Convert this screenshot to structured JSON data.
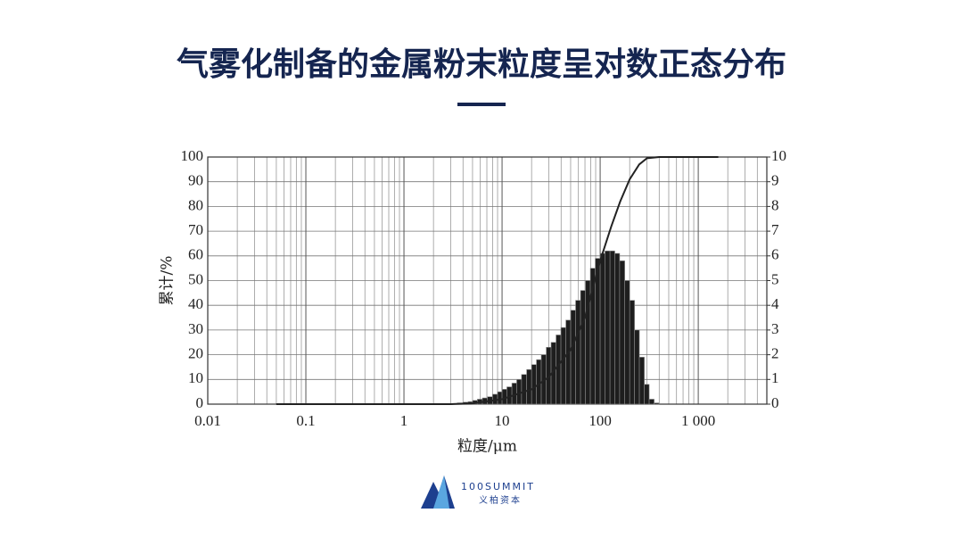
{
  "chart_data": {
    "type": "combo",
    "title": "气雾化制备的金属粉末粒度呈对数正态分布",
    "xlabel": "粒度/μm",
    "ylabel": "累计/%",
    "xscale": "log",
    "xlim": [
      0.01,
      5000
    ],
    "xticks": [
      0.01,
      0.1,
      1,
      10,
      100,
      {
        "value": 1000,
        "label": "1 000"
      }
    ],
    "ylim": [
      0,
      100
    ],
    "yticks": [
      0,
      10,
      20,
      30,
      40,
      50,
      60,
      70,
      80,
      90,
      100
    ],
    "y2lim": [
      0,
      10
    ],
    "y2ticks": [
      0,
      1,
      2,
      3,
      4,
      5,
      6,
      7,
      8,
      9,
      10
    ],
    "grid": true,
    "series": [
      {
        "type": "histogram",
        "axis": "y2",
        "color": "#1e1e1e",
        "bins": [
          3.5,
          4,
          4.5,
          5,
          5.6,
          6.3,
          7.1,
          8,
          9,
          10,
          11.2,
          12.6,
          14.1,
          15.8,
          17.8,
          20,
          22.4,
          25.1,
          28.2,
          31.6,
          35.5,
          39.8,
          44.7,
          50.1,
          56.2,
          63.1,
          70.8,
          79.4,
          89.1,
          100,
          112,
          126,
          141,
          158,
          178,
          200,
          224,
          251,
          282,
          316,
          355,
          398
        ],
        "values": [
          0.05,
          0.08,
          0.1,
          0.15,
          0.2,
          0.25,
          0.3,
          0.4,
          0.5,
          0.6,
          0.7,
          0.85,
          1.0,
          1.2,
          1.4,
          1.6,
          1.8,
          2.0,
          2.3,
          2.5,
          2.8,
          3.1,
          3.4,
          3.8,
          4.2,
          4.6,
          5.0,
          5.5,
          5.9,
          6.1,
          6.2,
          6.2,
          6.1,
          5.8,
          5.0,
          4.2,
          3.0,
          1.9,
          0.8,
          0.2,
          0.05
        ]
      },
      {
        "type": "line",
        "color": "#222222",
        "x": [
          0.05,
          1,
          3,
          5,
          10,
          20,
          30,
          50,
          70,
          100,
          130,
          160,
          200,
          250,
          300,
          400,
          1600
        ],
        "values": [
          0,
          0,
          0,
          0.3,
          2,
          6,
          11,
          22,
          35,
          58,
          72,
          82,
          91,
          97,
          99.5,
          100,
          100
        ]
      }
    ]
  },
  "brand": {
    "name": "100SUMMIT",
    "subtitle": "义柏资本"
  }
}
